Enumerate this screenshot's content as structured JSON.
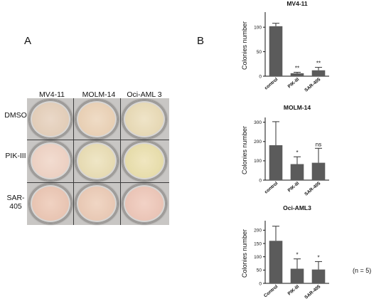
{
  "figure": {
    "panel_a_letter": "A",
    "panel_b_letter": "B",
    "n_note": "(n = 5)"
  },
  "panel_a": {
    "columns": [
      "MV4-11",
      "MOLM-14",
      "Oci-AML 3"
    ],
    "rows": [
      "DMSO",
      "PIK-III",
      "SAR-405"
    ]
  },
  "chart_data": [
    {
      "type": "bar",
      "title": "MV4-11",
      "ylabel": "Colonies number",
      "xlabel": "",
      "categories": [
        "control",
        "PIK-III",
        "SAR-405"
      ],
      "values": [
        102,
        6,
        12
      ],
      "errors": [
        6,
        2,
        6
      ],
      "significance": [
        "",
        "**",
        "**"
      ],
      "ylim": [
        0,
        125
      ],
      "yticks": [
        0,
        50,
        100
      ],
      "color": "#5b5b5b"
    },
    {
      "type": "bar",
      "title": "MOLM-14",
      "ylabel": "Colonies number",
      "xlabel": "",
      "categories": [
        "control",
        "PIK-III",
        "SAR-405"
      ],
      "values": [
        181,
        83,
        90
      ],
      "errors": [
        122,
        38,
        75
      ],
      "significance": [
        "",
        "*",
        "ns"
      ],
      "ylim": [
        0,
        310
      ],
      "yticks": [
        0,
        100,
        200,
        300
      ],
      "color": "#5b5b5b"
    },
    {
      "type": "bar",
      "title": "Oci-AML3",
      "ylabel": "Colonies number",
      "xlabel": "",
      "categories": [
        "Control",
        "PIK-III",
        "SAR-405"
      ],
      "values": [
        160,
        55,
        52
      ],
      "errors": [
        55,
        37,
        30
      ],
      "significance": [
        "",
        "*",
        "*"
      ],
      "ylim": [
        0,
        225
      ],
      "yticks": [
        0,
        50,
        100,
        150,
        200
      ],
      "color": "#5b5b5b"
    }
  ]
}
